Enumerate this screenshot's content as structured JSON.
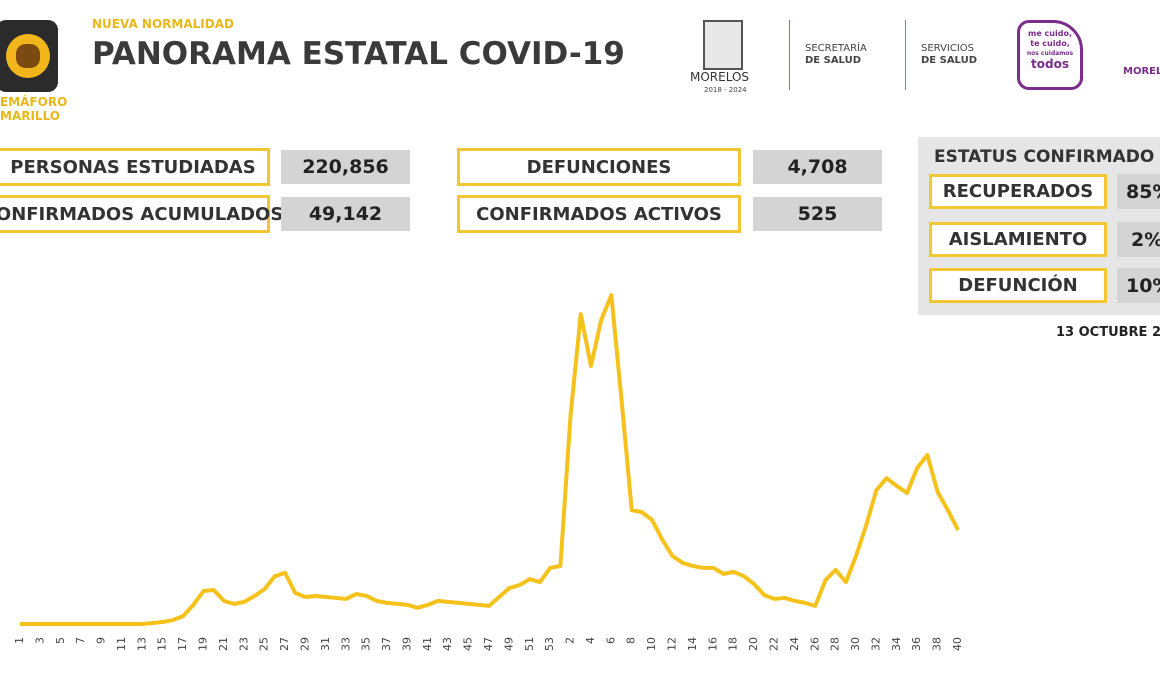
{
  "header": {
    "semaforo": [
      "EMÁFORO",
      "MARILLO"
    ],
    "kicker": "NUEVA NORMALIDAD",
    "title": "PANORAMA ESTATAL COVID-19",
    "logos": {
      "morelos": "MORELOS",
      "period": "2018 - 2024",
      "secretaria": [
        "SECRETARÍA",
        "DE SALUD"
      ],
      "servicios": [
        "SERVICIOS",
        "DE SALUD"
      ],
      "campaign": [
        "me cuido,",
        "te cuido,",
        "nos cuidamos",
        "todos"
      ],
      "morelos2": "MORELOS"
    }
  },
  "stats": [
    {
      "label": "PERSONAS ESTUDIADAS",
      "value": "220,856"
    },
    {
      "label": "CONFIRMADOS ACUMULADOS",
      "value": "49,142"
    },
    {
      "label": "DEFUNCIONES",
      "value": "4,708"
    },
    {
      "label": "CONFIRMADOS ACTIVOS",
      "value": "525"
    }
  ],
  "status": {
    "title": "ESTATUS CONFIRMADO",
    "rows": [
      {
        "label": "RECUPERADOS",
        "value": "85%"
      },
      {
        "label": "AISLAMIENTO",
        "value": "2%"
      },
      {
        "label": "DEFUNCIÓN",
        "value": "10%"
      }
    ]
  },
  "date": "13 OCTUBRE 2",
  "chart_data": {
    "type": "line",
    "color": "#f5c21b",
    "ylim": [
      0,
      100
    ],
    "categories": [
      "1",
      null,
      "3",
      null,
      "5",
      null,
      "7",
      null,
      "9",
      null,
      "11",
      null,
      "13",
      null,
      "15",
      null,
      "17",
      null,
      "19",
      null,
      "21",
      null,
      "23",
      null,
      "25",
      null,
      "27",
      null,
      "29",
      null,
      "31",
      null,
      "33",
      null,
      "35",
      null,
      "37",
      null,
      "39",
      null,
      "41",
      null,
      "43",
      null,
      "45",
      null,
      "47",
      null,
      "49",
      null,
      "51",
      null,
      "53",
      null,
      "2",
      null,
      "4",
      null,
      "6",
      null,
      "8",
      null,
      "10",
      null,
      "12",
      null,
      "14",
      null,
      "16",
      null,
      "18",
      null,
      "20",
      null,
      "22",
      null,
      "24",
      null,
      "26",
      null,
      "28",
      null,
      "30",
      null,
      "32",
      null,
      "34",
      null,
      "36",
      null,
      "38",
      null,
      "40"
    ],
    "values": [
      0.3,
      0.3,
      0.3,
      0.3,
      0.3,
      0.3,
      0.3,
      0.3,
      0.3,
      0.3,
      0.3,
      0.3,
      0.3,
      0.6,
      0.9,
      1.5,
      2.7,
      6.1,
      10.3,
      10.6,
      7.3,
      6.4,
      7.0,
      8.8,
      10.9,
      14.8,
      15.8,
      9.7,
      8.5,
      8.8,
      8.5,
      8.2,
      7.9,
      9.4,
      8.8,
      7.3,
      6.7,
      6.4,
      6.1,
      5.2,
      6.1,
      7.3,
      7.0,
      6.7,
      6.4,
      6.1,
      5.8,
      8.5,
      11.2,
      12.1,
      13.9,
      13.0,
      17.3,
      17.9,
      63.6,
      94.2,
      78.5,
      92.4,
      100,
      68.2,
      34.8,
      34.2,
      31.8,
      25.8,
      20.9,
      18.8,
      17.9,
      17.3,
      17.3,
      15.5,
      16.1,
      14.8,
      12.4,
      9.1,
      7.9,
      8.2,
      7.3,
      6.7,
      5.8,
      13.6,
      16.7,
      13.0,
      20.9,
      30.3,
      40.9,
      44.5,
      42.1,
      40.0,
      47.6,
      51.5,
      40.3,
      34.8,
      28.8
    ]
  }
}
